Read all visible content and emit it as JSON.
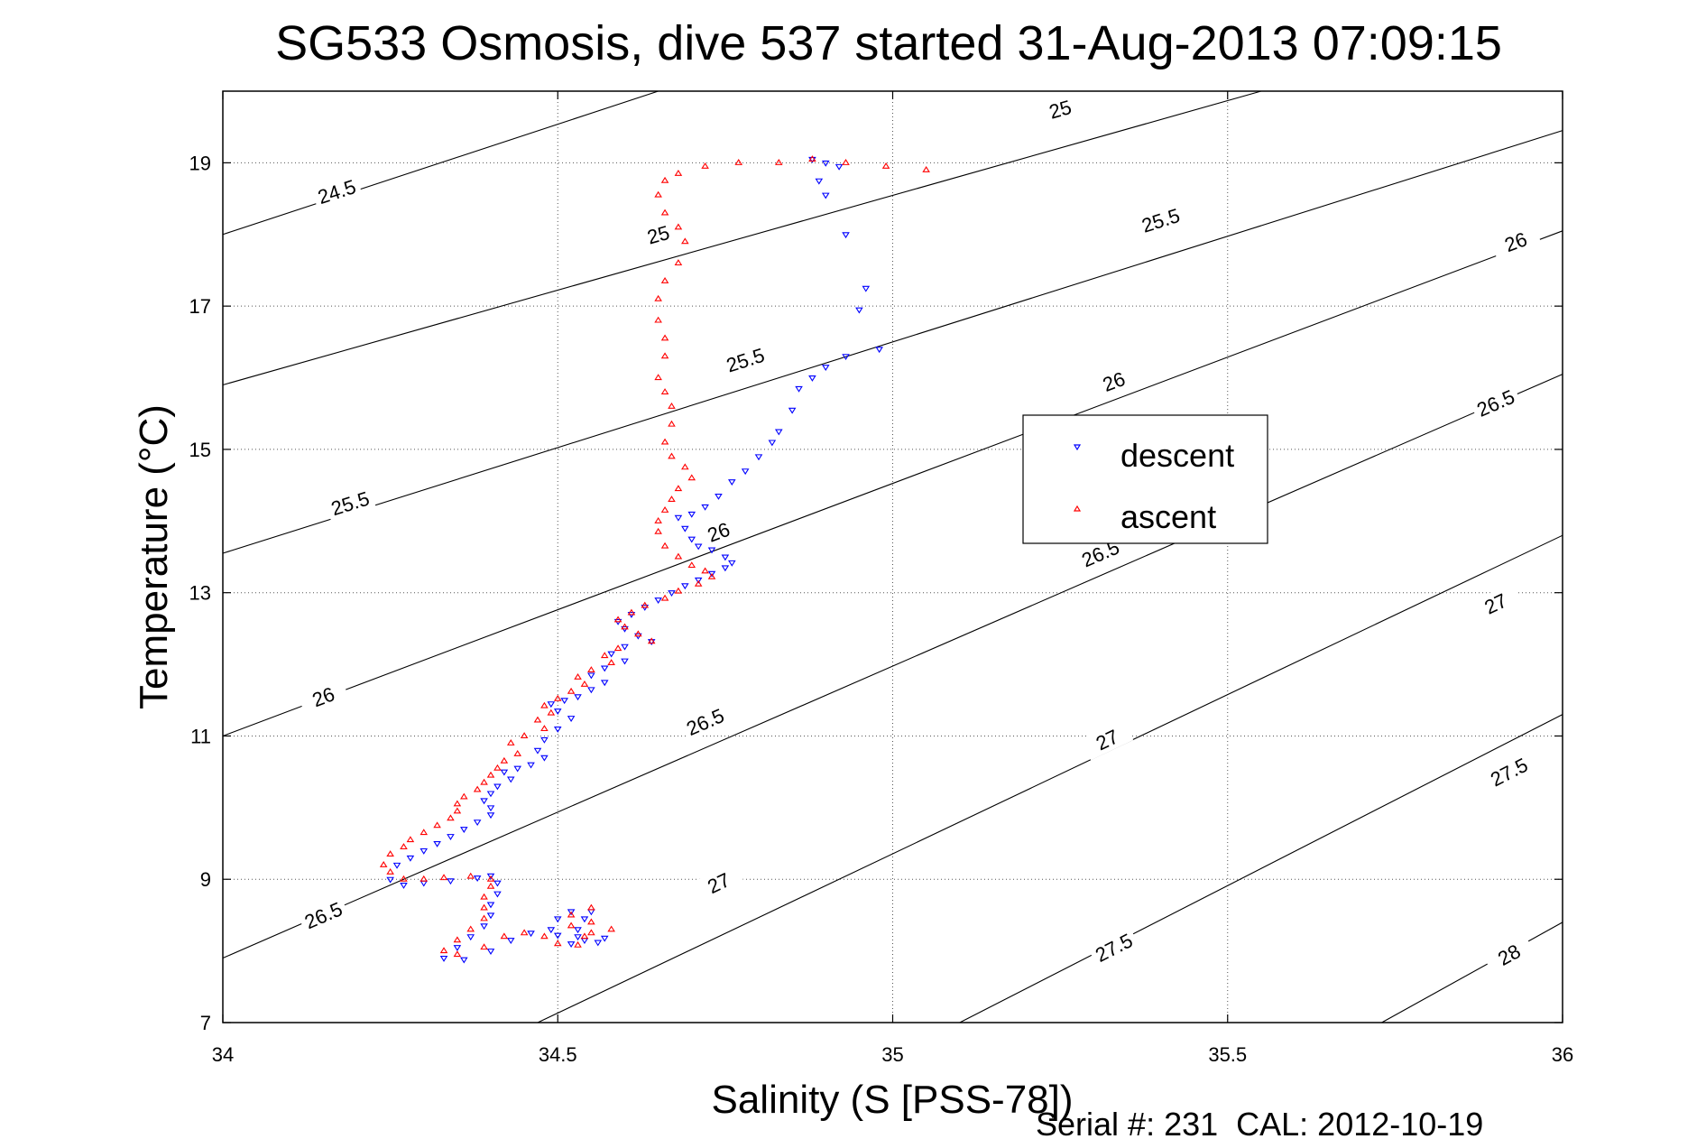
{
  "chart_data": {
    "type": "scatter",
    "title": "SG533 Osmosis, dive 537 started 31-Aug-2013 07:09:15",
    "xlabel": "Salinity (S [PSS-78])",
    "ylabel": "Temperature (°C)",
    "footer": "Serial #: 231  CAL: 2012-10-19",
    "xlim": [
      34,
      36
    ],
    "ylim": [
      7,
      20
    ],
    "xticks": [
      34,
      34.5,
      35,
      35.5,
      36
    ],
    "xtick_labels": [
      "34",
      "34.5",
      "35",
      "35.5",
      "36"
    ],
    "yticks": [
      7,
      9,
      11,
      13,
      15,
      17,
      19
    ],
    "ytick_labels": [
      "7",
      "9",
      "11",
      "13",
      "15",
      "17",
      "19"
    ],
    "grid": true,
    "legend_position": "inside-right",
    "contours": [
      {
        "level": "24.5",
        "x0": 34,
        "y0": 18.0,
        "x1": 34.65,
        "y1": 20.0,
        "labels": [
          [
            34.17,
            18.6
          ]
        ]
      },
      {
        "level": "25",
        "x0": 34,
        "y0": 15.9,
        "x1": 35.55,
        "y1": 20.0,
        "labels": [
          [
            34.65,
            18.0
          ],
          [
            35.25,
            19.75
          ]
        ]
      },
      {
        "level": "25.5",
        "x0": 34,
        "y0": 13.55,
        "x1": 36.0,
        "y1": 19.45,
        "labels": [
          [
            34.19,
            14.25
          ],
          [
            34.78,
            16.25
          ],
          [
            35.4,
            18.2
          ]
        ]
      },
      {
        "level": "26",
        "x0": 34,
        "y0": 11.0,
        "x1": 36.0,
        "y1": 18.05,
        "labels": [
          [
            34.15,
            11.55
          ],
          [
            34.74,
            13.85
          ],
          [
            35.33,
            15.95
          ],
          [
            35.93,
            17.9
          ]
        ]
      },
      {
        "level": "26.5",
        "x0": 34,
        "y0": 7.9,
        "x1": 36.0,
        "y1": 16.05,
        "labels": [
          [
            34.15,
            8.5
          ],
          [
            34.72,
            11.2
          ],
          [
            35.31,
            13.55
          ],
          [
            35.9,
            15.65
          ]
        ]
      },
      {
        "level": "27",
        "x0": 34.47,
        "y0": 7.0,
        "x1": 36.0,
        "y1": 13.8,
        "labels": [
          [
            34.74,
            8.95
          ],
          [
            35.32,
            10.95
          ],
          [
            35.9,
            12.85
          ]
        ]
      },
      {
        "level": "27.5",
        "x0": 35.1,
        "y0": 7.0,
        "x1": 36.0,
        "y1": 11.3,
        "labels": [
          [
            35.33,
            8.05
          ],
          [
            35.92,
            10.5
          ]
        ]
      },
      {
        "level": "28",
        "x0": 35.73,
        "y0": 7.0,
        "x1": 36.0,
        "y1": 8.4,
        "labels": [
          [
            35.92,
            7.95
          ]
        ]
      }
    ],
    "series": [
      {
        "name": "descent",
        "marker": "triangle-down",
        "color": "#0000ff",
        "points": [
          [
            34.88,
            19.05
          ],
          [
            34.9,
            19.0
          ],
          [
            34.92,
            18.95
          ],
          [
            34.89,
            18.75
          ],
          [
            34.9,
            18.55
          ],
          [
            34.93,
            18.0
          ],
          [
            34.96,
            17.25
          ],
          [
            34.95,
            16.95
          ],
          [
            34.98,
            16.4
          ],
          [
            34.93,
            16.3
          ],
          [
            34.9,
            16.15
          ],
          [
            34.88,
            16.0
          ],
          [
            34.86,
            15.85
          ],
          [
            34.85,
            15.55
          ],
          [
            34.83,
            15.25
          ],
          [
            34.82,
            15.1
          ],
          [
            34.8,
            14.9
          ],
          [
            34.78,
            14.7
          ],
          [
            34.76,
            14.55
          ],
          [
            34.74,
            14.35
          ],
          [
            34.72,
            14.2
          ],
          [
            34.7,
            14.1
          ],
          [
            34.68,
            14.05
          ],
          [
            34.69,
            13.9
          ],
          [
            34.7,
            13.75
          ],
          [
            34.71,
            13.65
          ],
          [
            34.73,
            13.6
          ],
          [
            34.75,
            13.5
          ],
          [
            34.76,
            13.42
          ],
          [
            34.75,
            13.35
          ],
          [
            34.73,
            13.27
          ],
          [
            34.71,
            13.18
          ],
          [
            34.69,
            13.1
          ],
          [
            34.67,
            13.0
          ],
          [
            34.65,
            12.9
          ],
          [
            34.63,
            12.8
          ],
          [
            34.61,
            12.7
          ],
          [
            34.59,
            12.6
          ],
          [
            34.6,
            12.5
          ],
          [
            34.62,
            12.4
          ],
          [
            34.64,
            12.32
          ],
          [
            34.6,
            12.25
          ],
          [
            34.58,
            12.15
          ],
          [
            34.6,
            12.05
          ],
          [
            34.57,
            11.95
          ],
          [
            34.55,
            11.85
          ],
          [
            34.57,
            11.75
          ],
          [
            34.55,
            11.65
          ],
          [
            34.53,
            11.55
          ],
          [
            34.51,
            11.5
          ],
          [
            34.49,
            11.45
          ],
          [
            34.5,
            11.35
          ],
          [
            34.52,
            11.25
          ],
          [
            34.5,
            11.1
          ],
          [
            34.48,
            10.95
          ],
          [
            34.47,
            10.8
          ],
          [
            34.48,
            10.7
          ],
          [
            34.46,
            10.6
          ],
          [
            34.44,
            10.55
          ],
          [
            34.42,
            10.5
          ],
          [
            34.43,
            10.4
          ],
          [
            34.41,
            10.3
          ],
          [
            34.4,
            10.2
          ],
          [
            34.39,
            10.1
          ],
          [
            34.4,
            10.0
          ],
          [
            34.4,
            9.9
          ],
          [
            34.38,
            9.8
          ],
          [
            34.36,
            9.7
          ],
          [
            34.34,
            9.6
          ],
          [
            34.32,
            9.5
          ],
          [
            34.3,
            9.4
          ],
          [
            34.28,
            9.3
          ],
          [
            34.26,
            9.2
          ],
          [
            34.25,
            9.0
          ],
          [
            34.27,
            8.92
          ],
          [
            34.3,
            8.95
          ],
          [
            34.34,
            8.98
          ],
          [
            34.38,
            9.02
          ],
          [
            34.4,
            9.05
          ],
          [
            34.41,
            8.95
          ],
          [
            34.41,
            8.8
          ],
          [
            34.4,
            8.65
          ],
          [
            34.4,
            8.5
          ],
          [
            34.39,
            8.35
          ],
          [
            34.37,
            8.2
          ],
          [
            34.35,
            8.05
          ],
          [
            34.33,
            7.9
          ],
          [
            34.36,
            7.88
          ],
          [
            34.4,
            8.0
          ],
          [
            34.43,
            8.15
          ],
          [
            34.46,
            8.25
          ],
          [
            34.49,
            8.3
          ],
          [
            34.5,
            8.22
          ],
          [
            34.52,
            8.1
          ],
          [
            34.54,
            8.15
          ],
          [
            34.53,
            8.3
          ],
          [
            34.54,
            8.45
          ],
          [
            34.55,
            8.55
          ],
          [
            34.52,
            8.55
          ],
          [
            34.5,
            8.45
          ],
          [
            34.53,
            8.2
          ],
          [
            34.56,
            8.12
          ],
          [
            34.57,
            8.18
          ]
        ]
      },
      {
        "name": "ascent",
        "marker": "triangle-up",
        "color": "#ff0000",
        "points": [
          [
            35.05,
            18.9
          ],
          [
            34.99,
            18.95
          ],
          [
            34.93,
            19.0
          ],
          [
            34.88,
            19.05
          ],
          [
            34.83,
            19.0
          ],
          [
            34.77,
            19.0
          ],
          [
            34.72,
            18.95
          ],
          [
            34.68,
            18.85
          ],
          [
            34.66,
            18.75
          ],
          [
            34.65,
            18.55
          ],
          [
            34.66,
            18.3
          ],
          [
            34.68,
            18.1
          ],
          [
            34.69,
            17.9
          ],
          [
            34.68,
            17.6
          ],
          [
            34.66,
            17.35
          ],
          [
            34.65,
            17.1
          ],
          [
            34.65,
            16.8
          ],
          [
            34.66,
            16.55
          ],
          [
            34.66,
            16.3
          ],
          [
            34.65,
            16.0
          ],
          [
            34.66,
            15.8
          ],
          [
            34.67,
            15.6
          ],
          [
            34.67,
            15.35
          ],
          [
            34.66,
            15.1
          ],
          [
            34.67,
            14.9
          ],
          [
            34.69,
            14.75
          ],
          [
            34.7,
            14.6
          ],
          [
            34.68,
            14.45
          ],
          [
            34.67,
            14.3
          ],
          [
            34.66,
            14.15
          ],
          [
            34.65,
            14.0
          ],
          [
            34.65,
            13.85
          ],
          [
            34.66,
            13.65
          ],
          [
            34.68,
            13.5
          ],
          [
            34.7,
            13.38
          ],
          [
            34.72,
            13.3
          ],
          [
            34.73,
            13.22
          ],
          [
            34.71,
            13.12
          ],
          [
            34.68,
            13.02
          ],
          [
            34.66,
            12.92
          ],
          [
            34.63,
            12.82
          ],
          [
            34.61,
            12.72
          ],
          [
            34.59,
            12.62
          ],
          [
            34.6,
            12.52
          ],
          [
            34.62,
            12.42
          ],
          [
            34.64,
            12.32
          ],
          [
            34.59,
            12.22
          ],
          [
            34.57,
            12.12
          ],
          [
            34.58,
            12.02
          ],
          [
            34.55,
            11.92
          ],
          [
            34.53,
            11.82
          ],
          [
            34.54,
            11.72
          ],
          [
            34.52,
            11.62
          ],
          [
            34.5,
            11.52
          ],
          [
            34.48,
            11.42
          ],
          [
            34.49,
            11.32
          ],
          [
            34.47,
            11.22
          ],
          [
            34.48,
            11.1
          ],
          [
            34.45,
            11.0
          ],
          [
            34.43,
            10.9
          ],
          [
            34.44,
            10.75
          ],
          [
            34.42,
            10.65
          ],
          [
            34.41,
            10.55
          ],
          [
            34.4,
            10.45
          ],
          [
            34.39,
            10.35
          ],
          [
            34.38,
            10.25
          ],
          [
            34.36,
            10.15
          ],
          [
            34.35,
            10.05
          ],
          [
            34.35,
            9.95
          ],
          [
            34.34,
            9.85
          ],
          [
            34.32,
            9.75
          ],
          [
            34.3,
            9.65
          ],
          [
            34.28,
            9.55
          ],
          [
            34.27,
            9.45
          ],
          [
            34.25,
            9.35
          ],
          [
            34.24,
            9.2
          ],
          [
            34.25,
            9.1
          ],
          [
            34.27,
            9.0
          ],
          [
            34.3,
            9.0
          ],
          [
            34.33,
            9.02
          ],
          [
            34.37,
            9.04
          ],
          [
            34.4,
            9.0
          ],
          [
            34.4,
            8.9
          ],
          [
            34.39,
            8.75
          ],
          [
            34.39,
            8.6
          ],
          [
            34.39,
            8.45
          ],
          [
            34.37,
            8.3
          ],
          [
            34.35,
            8.15
          ],
          [
            34.33,
            8.0
          ],
          [
            34.35,
            7.95
          ],
          [
            34.39,
            8.05
          ],
          [
            34.42,
            8.2
          ],
          [
            34.45,
            8.25
          ],
          [
            34.48,
            8.2
          ],
          [
            34.5,
            8.1
          ],
          [
            34.53,
            8.08
          ],
          [
            34.54,
            8.2
          ],
          [
            34.55,
            8.4
          ],
          [
            34.55,
            8.6
          ],
          [
            34.52,
            8.5
          ],
          [
            34.52,
            8.35
          ],
          [
            34.55,
            8.25
          ],
          [
            34.58,
            8.3
          ]
        ]
      }
    ]
  }
}
